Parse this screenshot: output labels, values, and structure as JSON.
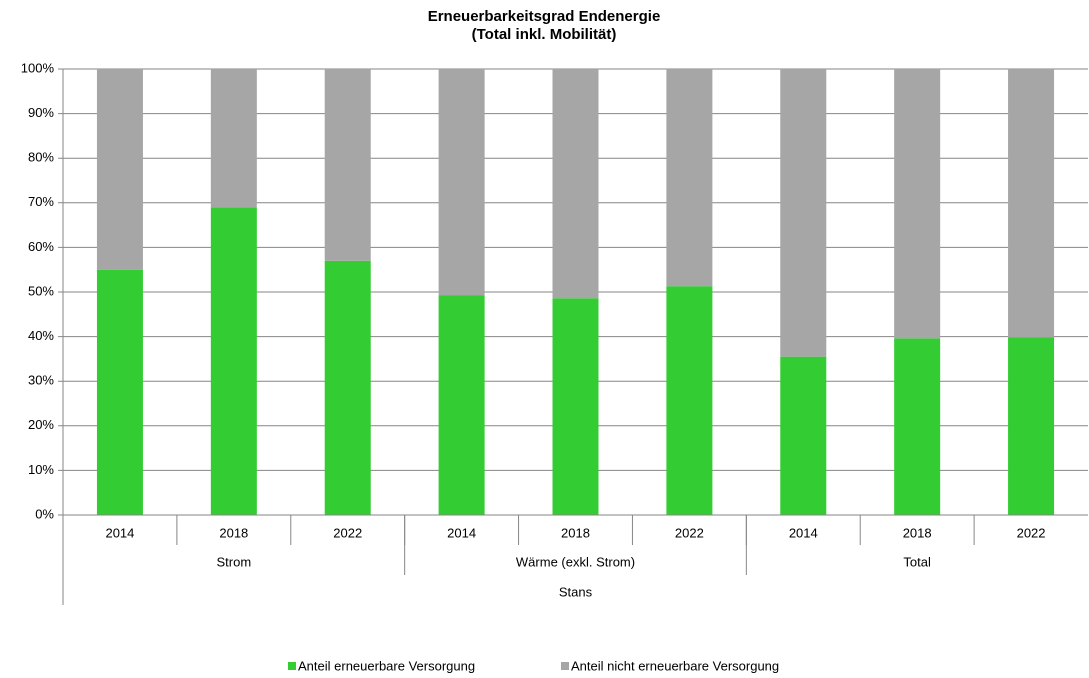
{
  "chart_data": {
    "type": "stacked_bar",
    "title": "Erneuerbarkeitsgrad Endenergie",
    "subtitle": "(Total inkl. Mobilität)",
    "categories": [
      "2014",
      "2018",
      "2022",
      "2014",
      "2018",
      "2022",
      "2014",
      "2018",
      "2022"
    ],
    "groups": [
      {
        "label": "Strom",
        "count": 3
      },
      {
        "label": "Wärme (exkl. Strom)",
        "count": 3
      },
      {
        "label": "Total",
        "count": 3
      }
    ],
    "supergroup": "Stans",
    "series": [
      {
        "name": "Anteil erneuerbare Versorgung",
        "color": "#33cc33",
        "values": [
          55,
          69,
          57,
          49.3,
          48.6,
          51.3,
          35.5,
          39.6,
          39.8
        ]
      },
      {
        "name": "Anteil nicht erneuerbare Versorgung",
        "color": "#a6a6a6",
        "values": [
          45,
          31,
          43,
          50.7,
          51.4,
          48.7,
          64.5,
          60.4,
          60.2
        ]
      }
    ],
    "ylim": [
      0,
      100
    ],
    "yticks": [
      {
        "value": 0,
        "label": "0%"
      },
      {
        "value": 10,
        "label": "10%"
      },
      {
        "value": 20,
        "label": "20%"
      },
      {
        "value": 30,
        "label": "30%"
      },
      {
        "value": 40,
        "label": "40%"
      },
      {
        "value": 50,
        "label": "50%"
      },
      {
        "value": 60,
        "label": "60%"
      },
      {
        "value": 70,
        "label": "70%"
      },
      {
        "value": 80,
        "label": "80%"
      },
      {
        "value": 90,
        "label": "90%"
      },
      {
        "value": 100,
        "label": "100%"
      }
    ],
    "grid": true,
    "legend": "bottom"
  }
}
